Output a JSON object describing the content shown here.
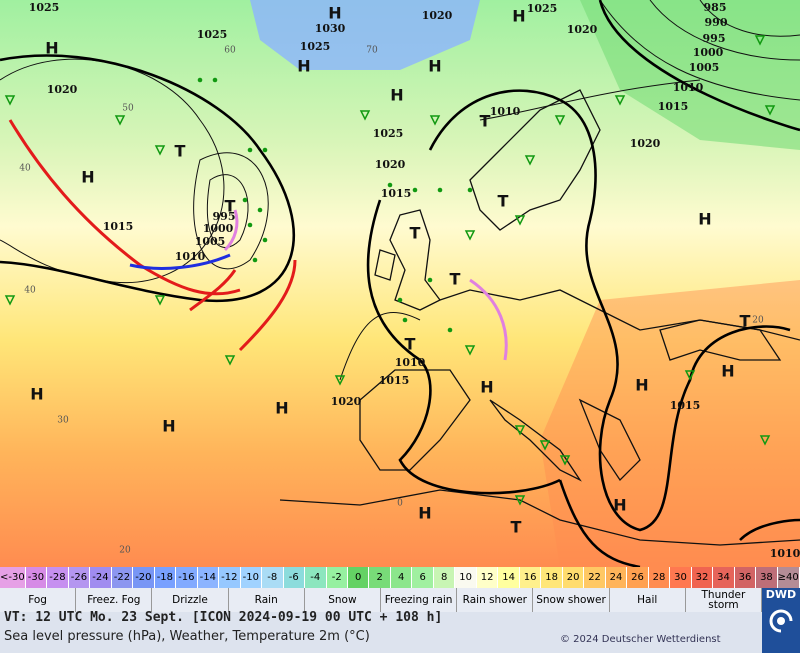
{
  "map": {
    "pressure_labels": [
      "1025",
      "1030",
      "1025",
      "1020",
      "1025",
      "1020",
      "985",
      "990",
      "995",
      "1000",
      "1005",
      "1010",
      "1015",
      "1020",
      "1025",
      "1020",
      "1010",
      "1025",
      "1020",
      "1015",
      "1015",
      "1000",
      "995",
      "1005",
      "1010",
      "1010",
      "1015",
      "1020",
      "1015",
      "1010"
    ],
    "systems": [
      "H",
      "H",
      "H",
      "H",
      "H",
      "H",
      "T",
      "T",
      "H",
      "T",
      "T",
      "H",
      "T",
      "T",
      "T",
      "T",
      "H",
      "H",
      "H",
      "H",
      "H",
      "H",
      "H",
      "H",
      "T"
    ],
    "isotherm_labels": [
      "60",
      "50",
      "40",
      "40",
      "30",
      "20",
      "70",
      "0",
      "20"
    ]
  },
  "color_scale": [
    {
      "label": "<-30",
      "color": "#e6a0e6"
    },
    {
      "label": "-30",
      "color": "#d68be6"
    },
    {
      "label": "-28",
      "color": "#c690f0"
    },
    {
      "label": "-26",
      "color": "#b496f0"
    },
    {
      "label": "-24",
      "color": "#a08cf0"
    },
    {
      "label": "-22",
      "color": "#8c96f0"
    },
    {
      "label": "-20",
      "color": "#7896f5"
    },
    {
      "label": "-18",
      "color": "#78a0ff"
    },
    {
      "label": "-16",
      "color": "#82aaff"
    },
    {
      "label": "-14",
      "color": "#8cb4ff"
    },
    {
      "label": "-12",
      "color": "#96c8ff"
    },
    {
      "label": "-10",
      "color": "#a0d2ff"
    },
    {
      "label": "-8",
      "color": "#aadcf5"
    },
    {
      "label": "-6",
      "color": "#8cdcdc"
    },
    {
      "label": "-4",
      "color": "#8ce6be"
    },
    {
      "label": "-2",
      "color": "#96f0a0"
    },
    {
      "label": "0",
      "color": "#64d264"
    },
    {
      "label": "2",
      "color": "#78dc78"
    },
    {
      "label": "4",
      "color": "#8ce68c"
    },
    {
      "label": "6",
      "color": "#a0f0a0"
    },
    {
      "label": "8",
      "color": "#c8f5b4"
    },
    {
      "label": "10",
      "color": "#fafaf0"
    },
    {
      "label": "12",
      "color": "#ffffc8"
    },
    {
      "label": "14",
      "color": "#ffff9f"
    },
    {
      "label": "16",
      "color": "#fff08c"
    },
    {
      "label": "18",
      "color": "#ffe678"
    },
    {
      "label": "20",
      "color": "#ffdc6e"
    },
    {
      "label": "22",
      "color": "#ffc864"
    },
    {
      "label": "24",
      "color": "#ffb45a"
    },
    {
      "label": "26",
      "color": "#ffa050"
    },
    {
      "label": "28",
      "color": "#ff8c50"
    },
    {
      "label": "30",
      "color": "#ff7850"
    },
    {
      "label": "32",
      "color": "#f06450"
    },
    {
      "label": "34",
      "color": "#e6645a"
    },
    {
      "label": "36",
      "color": "#d26464"
    },
    {
      "label": "38",
      "color": "#be6e78"
    },
    {
      "label": "≥40 °C",
      "color": "#b48c96"
    }
  ],
  "weather_legend": [
    "Fog",
    "Freez. Fog",
    "Drizzle",
    "Rain",
    "Snow",
    "Freezing rain",
    "Rain shower",
    "Snow shower",
    "Hail",
    "Thunder storm"
  ],
  "footer": {
    "valid_time": "VT: 12 UTC Mo.  23 Sept. [ICON 2024-09-19  00 UTC + 108 h]",
    "description": "Sea level pressure (hPa), Weather, Temperature 2m (°C)",
    "copyright": "© 2024 Deutscher Wetterdienst",
    "logo": "DWD"
  }
}
